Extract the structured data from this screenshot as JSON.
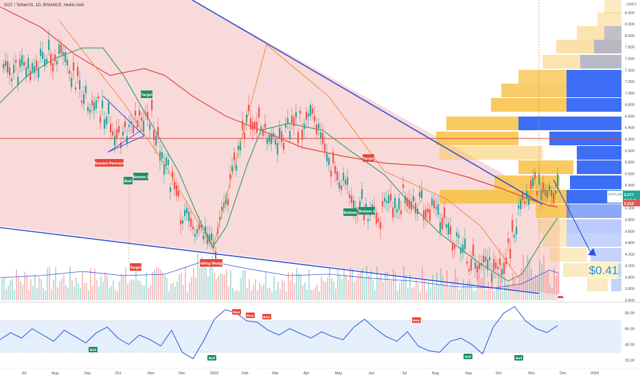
{
  "header": {
    "title": "DOT / TetherUS, 1D, BINANCE, Heikin Ashi"
  },
  "price_axis": {
    "unit": "USDT",
    "ticks": [
      "8.400",
      "8.200",
      "8.000",
      "7.800",
      "7.600",
      "7.400",
      "7.200",
      "7.000",
      "6.800",
      "6.600",
      "6.400",
      "6.200",
      "6.000",
      "5.800",
      "5.600",
      "5.400",
      "5.200",
      "5.000",
      "4.800",
      "4.600",
      "4.400",
      "4.200",
      "4.000",
      "3.800",
      "3.600",
      "3.400"
    ],
    "last_price_label": {
      "symbol": "DOTUSDT",
      "price": "5.277",
      "countdown": "07:32:32"
    },
    "second_price_label": "5.219"
  },
  "rsi_axis": {
    "ticks": [
      "80.00",
      "60.00",
      "40.00",
      "20.00"
    ]
  },
  "time_axis": {
    "labels": [
      "Jul",
      "Aug",
      "Sep",
      "Oct",
      "Nov",
      "Dec",
      "2023",
      "Feb",
      "Mar",
      "Apr",
      "May",
      "Jun",
      "Jul",
      "Aug",
      "Sep",
      "Oct",
      "Nov",
      "Dec",
      "2024"
    ]
  },
  "annotations": {
    "target_1": "Target",
    "bearish_pennant": "Bearish Pennant",
    "bottom_a": "Bott",
    "bottom_2_a": "Bottom 2",
    "target_2": "Target",
    "falling_wedge": "Falling Wedge",
    "target_3": "Target",
    "bottom_b": "Bottom",
    "bottom_2_b": "Bottom 2",
    "price_target": "$0.41"
  },
  "rsi_labels": {
    "bear_1": "Bear",
    "bear_2": "Bear",
    "bear_3": "Bear",
    "bear_4": "Bear",
    "bull_1": "Bull",
    "bull_2": "Bull",
    "bull_3": "Bull",
    "bull_4": "Bull"
  },
  "colors": {
    "background": "#ffffff",
    "wedge_fill": "#f8d3d3",
    "trendline": "#2f4fd8",
    "ma_red": "#e0423a",
    "ma_green": "#3f9c6d",
    "up_candle": "#26a69a",
    "down_candle": "#ef5350",
    "profile_orange": "#f7c44f",
    "profile_blue": "#3d6ef5",
    "rsi_line": "#2f5fe0",
    "rsi_band": "#dbe8fb",
    "label_red": "#e8453c",
    "label_green": "#1e8f6a",
    "target_text": "#2a8fd4"
  },
  "icons": {
    "logo": "tradingview-logo-icon"
  },
  "chart_data": {
    "type": "candlestick",
    "style": "Heikin Ashi",
    "title": "DOT / TetherUS, 1D, BINANCE, Heikin Ashi",
    "x_categories": [
      "Jul",
      "Aug",
      "Sep",
      "Oct",
      "Nov",
      "Dec",
      "2023",
      "Feb",
      "Mar",
      "Apr",
      "May",
      "Jun",
      "Jul",
      "Aug",
      "Sep",
      "Oct",
      "Nov",
      "Dec",
      "2024"
    ],
    "ylim": [
      3.4,
      8.5
    ],
    "price_path_approx": [
      {
        "x": "Jul",
        "y": 7.4
      },
      {
        "x": "Aug",
        "y": 7.7
      },
      {
        "x": "Sep",
        "y": 6.9
      },
      {
        "x": "Oct",
        "y": 6.3
      },
      {
        "x": "Nov",
        "y": 6.6
      },
      {
        "x": "Dec",
        "y": 4.8
      },
      {
        "x": "2023",
        "y": 4.3
      },
      {
        "x": "Feb",
        "y": 6.6
      },
      {
        "x": "Mar",
        "y": 6.2
      },
      {
        "x": "Apr",
        "y": 6.6
      },
      {
        "x": "May",
        "y": 5.4
      },
      {
        "x": "Jun",
        "y": 4.8
      },
      {
        "x": "Jul",
        "y": 5.2
      },
      {
        "x": "Aug",
        "y": 4.9
      },
      {
        "x": "Sep",
        "y": 4.1
      },
      {
        "x": "Oct",
        "y": 3.9
      },
      {
        "x": "Nov",
        "y": 5.5
      },
      {
        "x": "Dec",
        "y": 5.3
      }
    ],
    "last_price": 5.277,
    "projection_target_label": "$0.41",
    "rsi": {
      "ylim": [
        10,
        90
      ],
      "ticks": [
        80,
        60,
        40,
        20
      ],
      "band": [
        30,
        70
      ],
      "values": [
        46,
        55,
        48,
        60,
        52,
        44,
        58,
        50,
        42,
        55,
        62,
        48,
        40,
        52,
        46,
        38,
        58,
        30,
        22,
        45,
        72,
        84,
        80,
        70,
        68,
        58,
        52,
        60,
        54,
        48,
        56,
        50,
        46,
        62,
        72,
        60,
        50,
        44,
        56,
        38,
        32,
        30,
        44,
        48,
        40,
        28,
        62,
        80,
        88,
        70,
        60,
        55,
        64
      ]
    }
  }
}
